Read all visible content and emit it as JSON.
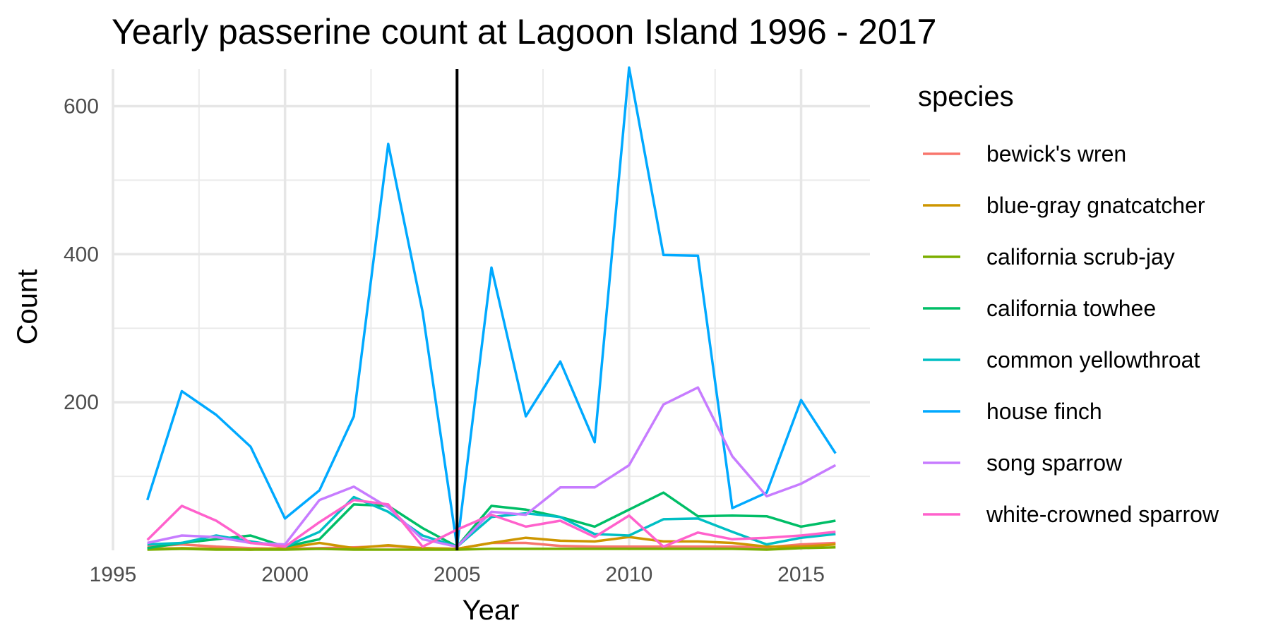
{
  "chart_data": {
    "type": "line",
    "title": "Yearly passerine count at  Lagoon Island 1996 - 2017",
    "xlabel": "Year",
    "ylabel": "Count",
    "xlim": [
      1995,
      2017
    ],
    "ylim": [
      0,
      650
    ],
    "x_ticks": [
      1995,
      2000,
      2005,
      2010,
      2015
    ],
    "y_ticks": [
      200,
      400,
      600
    ],
    "y_minor_ticks": [
      100,
      300,
      500
    ],
    "grid": true,
    "reference_line": {
      "x": 2005,
      "color": "#000000"
    },
    "legend": {
      "title": "species",
      "position": "right"
    },
    "x": [
      1996,
      1997,
      1998,
      1999,
      2000,
      2001,
      2002,
      2003,
      2004,
      2005,
      2006,
      2007,
      2008,
      2009,
      2010,
      2011,
      2012,
      2013,
      2014,
      2015,
      2016
    ],
    "series": [
      {
        "name": "bewick's wren",
        "color": "#F8766D",
        "values": [
          5,
          8,
          5,
          3,
          2,
          3,
          4,
          6,
          3,
          2,
          10,
          10,
          6,
          5,
          5,
          5,
          5,
          5,
          4,
          8,
          10
        ]
      },
      {
        "name": "blue-gray gnatcatcher",
        "color": "#CD9600",
        "values": [
          2,
          3,
          2,
          1,
          3,
          10,
          3,
          7,
          3,
          2,
          10,
          17,
          13,
          12,
          18,
          12,
          12,
          10,
          5,
          5,
          8
        ]
      },
      {
        "name": "california scrub-jay",
        "color": "#7CAE00",
        "values": [
          1,
          2,
          1,
          1,
          1,
          2,
          1,
          1,
          1,
          1,
          2,
          2,
          2,
          2,
          2,
          2,
          2,
          2,
          1,
          3,
          4
        ]
      },
      {
        "name": "california towhee",
        "color": "#00BE67",
        "values": [
          3,
          10,
          15,
          20,
          5,
          15,
          62,
          60,
          30,
          5,
          60,
          55,
          45,
          32,
          55,
          78,
          46,
          47,
          46,
          32,
          40
        ]
      },
      {
        "name": "common yellowthroat",
        "color": "#00BFC4",
        "values": [
          8,
          10,
          20,
          12,
          5,
          25,
          72,
          52,
          20,
          5,
          45,
          50,
          45,
          22,
          20,
          42,
          43,
          25,
          8,
          17,
          22
        ]
      },
      {
        "name": "house finch",
        "color": "#00A9FF",
        "values": [
          68,
          215,
          183,
          140,
          43,
          81,
          181,
          549,
          322,
          5,
          382,
          181,
          255,
          146,
          652,
          399,
          398,
          57,
          78,
          203,
          131
        ]
      },
      {
        "name": "song sparrow",
        "color": "#C77CFF",
        "values": [
          10,
          20,
          18,
          10,
          8,
          68,
          86,
          58,
          15,
          5,
          52,
          48,
          85,
          85,
          115,
          197,
          220,
          127,
          73,
          90,
          115
        ]
      },
      {
        "name": "white-crowned sparrow",
        "color": "#FF61CC",
        "values": [
          14,
          60,
          40,
          10,
          5,
          38,
          68,
          62,
          5,
          28,
          48,
          32,
          40,
          18,
          47,
          5,
          24,
          15,
          17,
          20,
          25
        ]
      }
    ]
  }
}
